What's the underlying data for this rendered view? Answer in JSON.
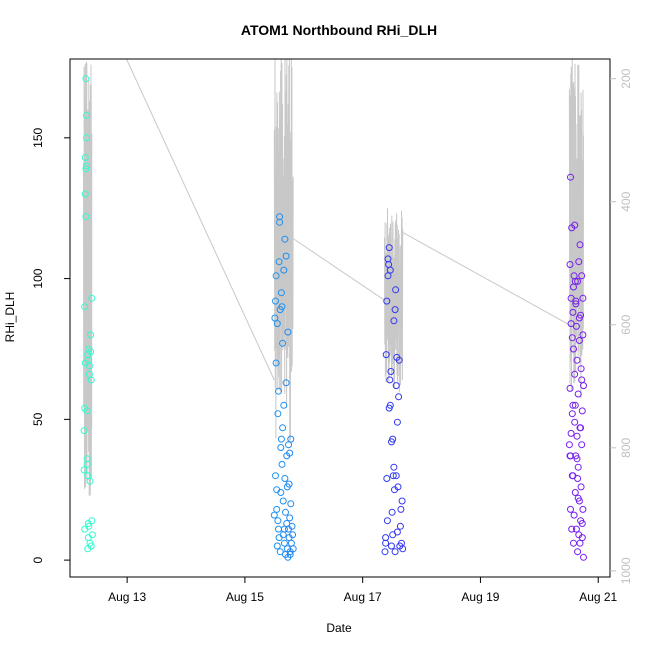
{
  "chart_data": {
    "type": "scatter",
    "title": "ATOM1 Northbound RHi_DLH",
    "xlabel": "Date",
    "ylabel": "RHi_DLH",
    "x_ticks": [
      "Aug 13",
      "Aug 15",
      "Aug 17",
      "Aug 19",
      "Aug 21"
    ],
    "y_ticks": [
      "0",
      "50",
      "100",
      "150"
    ],
    "y2_ticks": [
      "200",
      "400",
      "600",
      "800",
      "1000"
    ],
    "xlim_days": [
      12.03,
      21.2
    ],
    "ylim": [
      -6,
      178
    ],
    "y2lim": [
      1010,
      168
    ],
    "y2_reversed": true,
    "grid": false,
    "colors": {
      "pressure_trace": "#c8c8c8",
      "pressure_tick_labels": "#c0c0c0",
      "axis": "#000000",
      "time_ramp": [
        "#33ffcc",
        "#22ccee",
        "#1f8ff0",
        "#2f3bf0",
        "#5522ee",
        "#7a1fee"
      ]
    },
    "pressure_trace": {
      "axis": "right",
      "units": "pressure",
      "groups": [
        {
          "start_day": 12.26,
          "end_day": 12.4,
          "min": 150,
          "max": 880
        },
        {
          "start_day": 15.5,
          "end_day": 15.82,
          "min": 150,
          "max": 790
        },
        {
          "start_day": 17.37,
          "end_day": 17.68,
          "min": 410,
          "max": 710
        },
        {
          "start_day": 20.51,
          "end_day": 20.75,
          "min": 150,
          "max": 720
        }
      ],
      "connectors": [
        {
          "from_day": 12.95,
          "from_p": 160,
          "to_day": 15.5,
          "to_p": 690
        },
        {
          "from_day": 15.82,
          "from_p": 460,
          "to_day": 17.37,
          "to_p": 560
        },
        {
          "from_day": 17.68,
          "from_p": 450,
          "to_day": 20.51,
          "to_p": 600
        }
      ]
    },
    "series": [
      {
        "x": [
          12.27,
          12.27,
          12.28,
          12.28,
          12.28,
          12.29,
          12.29,
          12.29,
          12.3,
          12.3,
          12.3,
          12.31,
          12.31,
          12.31,
          12.32,
          12.32,
          12.32,
          12.33,
          12.33,
          12.33,
          12.34,
          12.34,
          12.34,
          12.35,
          12.35,
          12.36,
          12.36,
          12.37,
          12.37,
          12.38,
          12.38,
          12.39,
          12.39,
          12.4,
          12.4,
          12.41
        ],
        "y": [
          46,
          32,
          11,
          54,
          90,
          70,
          143,
          130,
          139,
          122,
          171,
          158,
          150,
          140,
          36,
          53,
          34,
          30,
          73,
          4,
          13,
          8,
          71,
          75,
          12,
          69,
          66,
          28,
          6,
          80,
          74,
          5,
          64,
          93,
          14,
          9
        ]
      },
      {
        "x": [
          15.5,
          15.51,
          15.52,
          15.52,
          15.53,
          15.53,
          15.54,
          15.54,
          15.55,
          15.55,
          15.56,
          15.56,
          15.57,
          15.57,
          15.58,
          15.58,
          15.59,
          15.59,
          15.6,
          15.6,
          15.61,
          15.61,
          15.62,
          15.62,
          15.63,
          15.63,
          15.64,
          15.64,
          15.65,
          15.65,
          15.66,
          15.66,
          15.67,
          15.67,
          15.68,
          15.68,
          15.69,
          15.69,
          15.7,
          15.7,
          15.71,
          15.71,
          15.72,
          15.72,
          15.73,
          15.73,
          15.74,
          15.74,
          15.75,
          15.75,
          15.76,
          15.76,
          15.77,
          15.77,
          15.78,
          15.78,
          15.79,
          15.8,
          15.81,
          15.82
        ],
        "y": [
          16,
          86,
          92,
          30,
          70,
          101,
          18,
          25,
          5,
          84,
          14,
          52,
          11,
          60,
          106,
          8,
          120,
          122,
          3,
          89,
          40,
          24,
          95,
          43,
          34,
          90,
          47,
          77,
          9,
          21,
          55,
          103,
          11,
          6,
          114,
          29,
          17,
          2,
          63,
          108,
          37,
          13,
          26,
          4,
          1,
          81,
          41,
          11,
          8,
          27,
          15,
          38,
          2,
          3,
          20,
          43,
          6,
          12,
          9,
          4
        ]
      },
      {
        "x": [
          17.38,
          17.39,
          17.4,
          17.41,
          17.42,
          17.43,
          17.44,
          17.45,
          17.46,
          17.47,
          17.48,
          17.49,
          17.5,
          17.51,
          17.52,
          17.53,
          17.54,
          17.55,
          17.56,
          17.57,
          17.58,
          17.59,
          17.6,
          17.61,
          17.62,
          17.63,
          17.64,
          17.65,
          17.66,
          17.67,
          17.68,
          17.39,
          17.41,
          17.43,
          17.45,
          17.47,
          17.49,
          17.51,
          17.53,
          17.55,
          17.57,
          17.59
        ],
        "y": [
          3,
          8,
          73,
          92,
          14,
          107,
          105,
          111,
          64,
          55,
          67,
          5,
          17,
          43,
          30,
          85,
          25,
          3,
          96,
          62,
          72,
          10,
          26,
          58,
          71,
          5,
          12,
          18,
          6,
          21,
          4,
          6,
          29,
          101,
          54,
          103,
          42,
          9,
          33,
          89,
          30,
          49
        ]
      },
      {
        "x": [
          20.51,
          20.52,
          20.52,
          20.53,
          20.53,
          20.54,
          20.54,
          20.55,
          20.55,
          20.56,
          20.56,
          20.57,
          20.57,
          20.58,
          20.58,
          20.59,
          20.59,
          20.6,
          20.6,
          20.61,
          20.61,
          20.62,
          20.62,
          20.63,
          20.63,
          20.64,
          20.64,
          20.65,
          20.65,
          20.66,
          20.66,
          20.67,
          20.67,
          20.68,
          20.68,
          20.69,
          20.69,
          20.7,
          20.7,
          20.71,
          20.71,
          20.72,
          20.72,
          20.73,
          20.73,
          20.74,
          20.74,
          20.75,
          20.75,
          20.52,
          20.54,
          20.56,
          20.58,
          20.6,
          20.62,
          20.64,
          20.66,
          20.68,
          20.7,
          20.72,
          20.74,
          20.53,
          20.57,
          20.61,
          20.65,
          20.69,
          20.73
        ],
        "y": [
          41,
          61,
          105,
          136,
          37,
          93,
          84,
          118,
          11,
          52,
          79,
          30,
          88,
          6,
          97,
          101,
          16,
          66,
          119,
          24,
          55,
          37,
          91,
          11,
          83,
          71,
          44,
          99,
          3,
          33,
          59,
          9,
          106,
          78,
          21,
          112,
          47,
          14,
          87,
          68,
          26,
          41,
          101,
          8,
          53,
          93,
          18,
          1,
          62,
          37,
          45,
          30,
          75,
          49,
          92,
          36,
          22,
          86,
          47,
          64,
          80,
          18,
          55,
          99,
          29,
          6,
          13
        ]
      }
    ]
  }
}
